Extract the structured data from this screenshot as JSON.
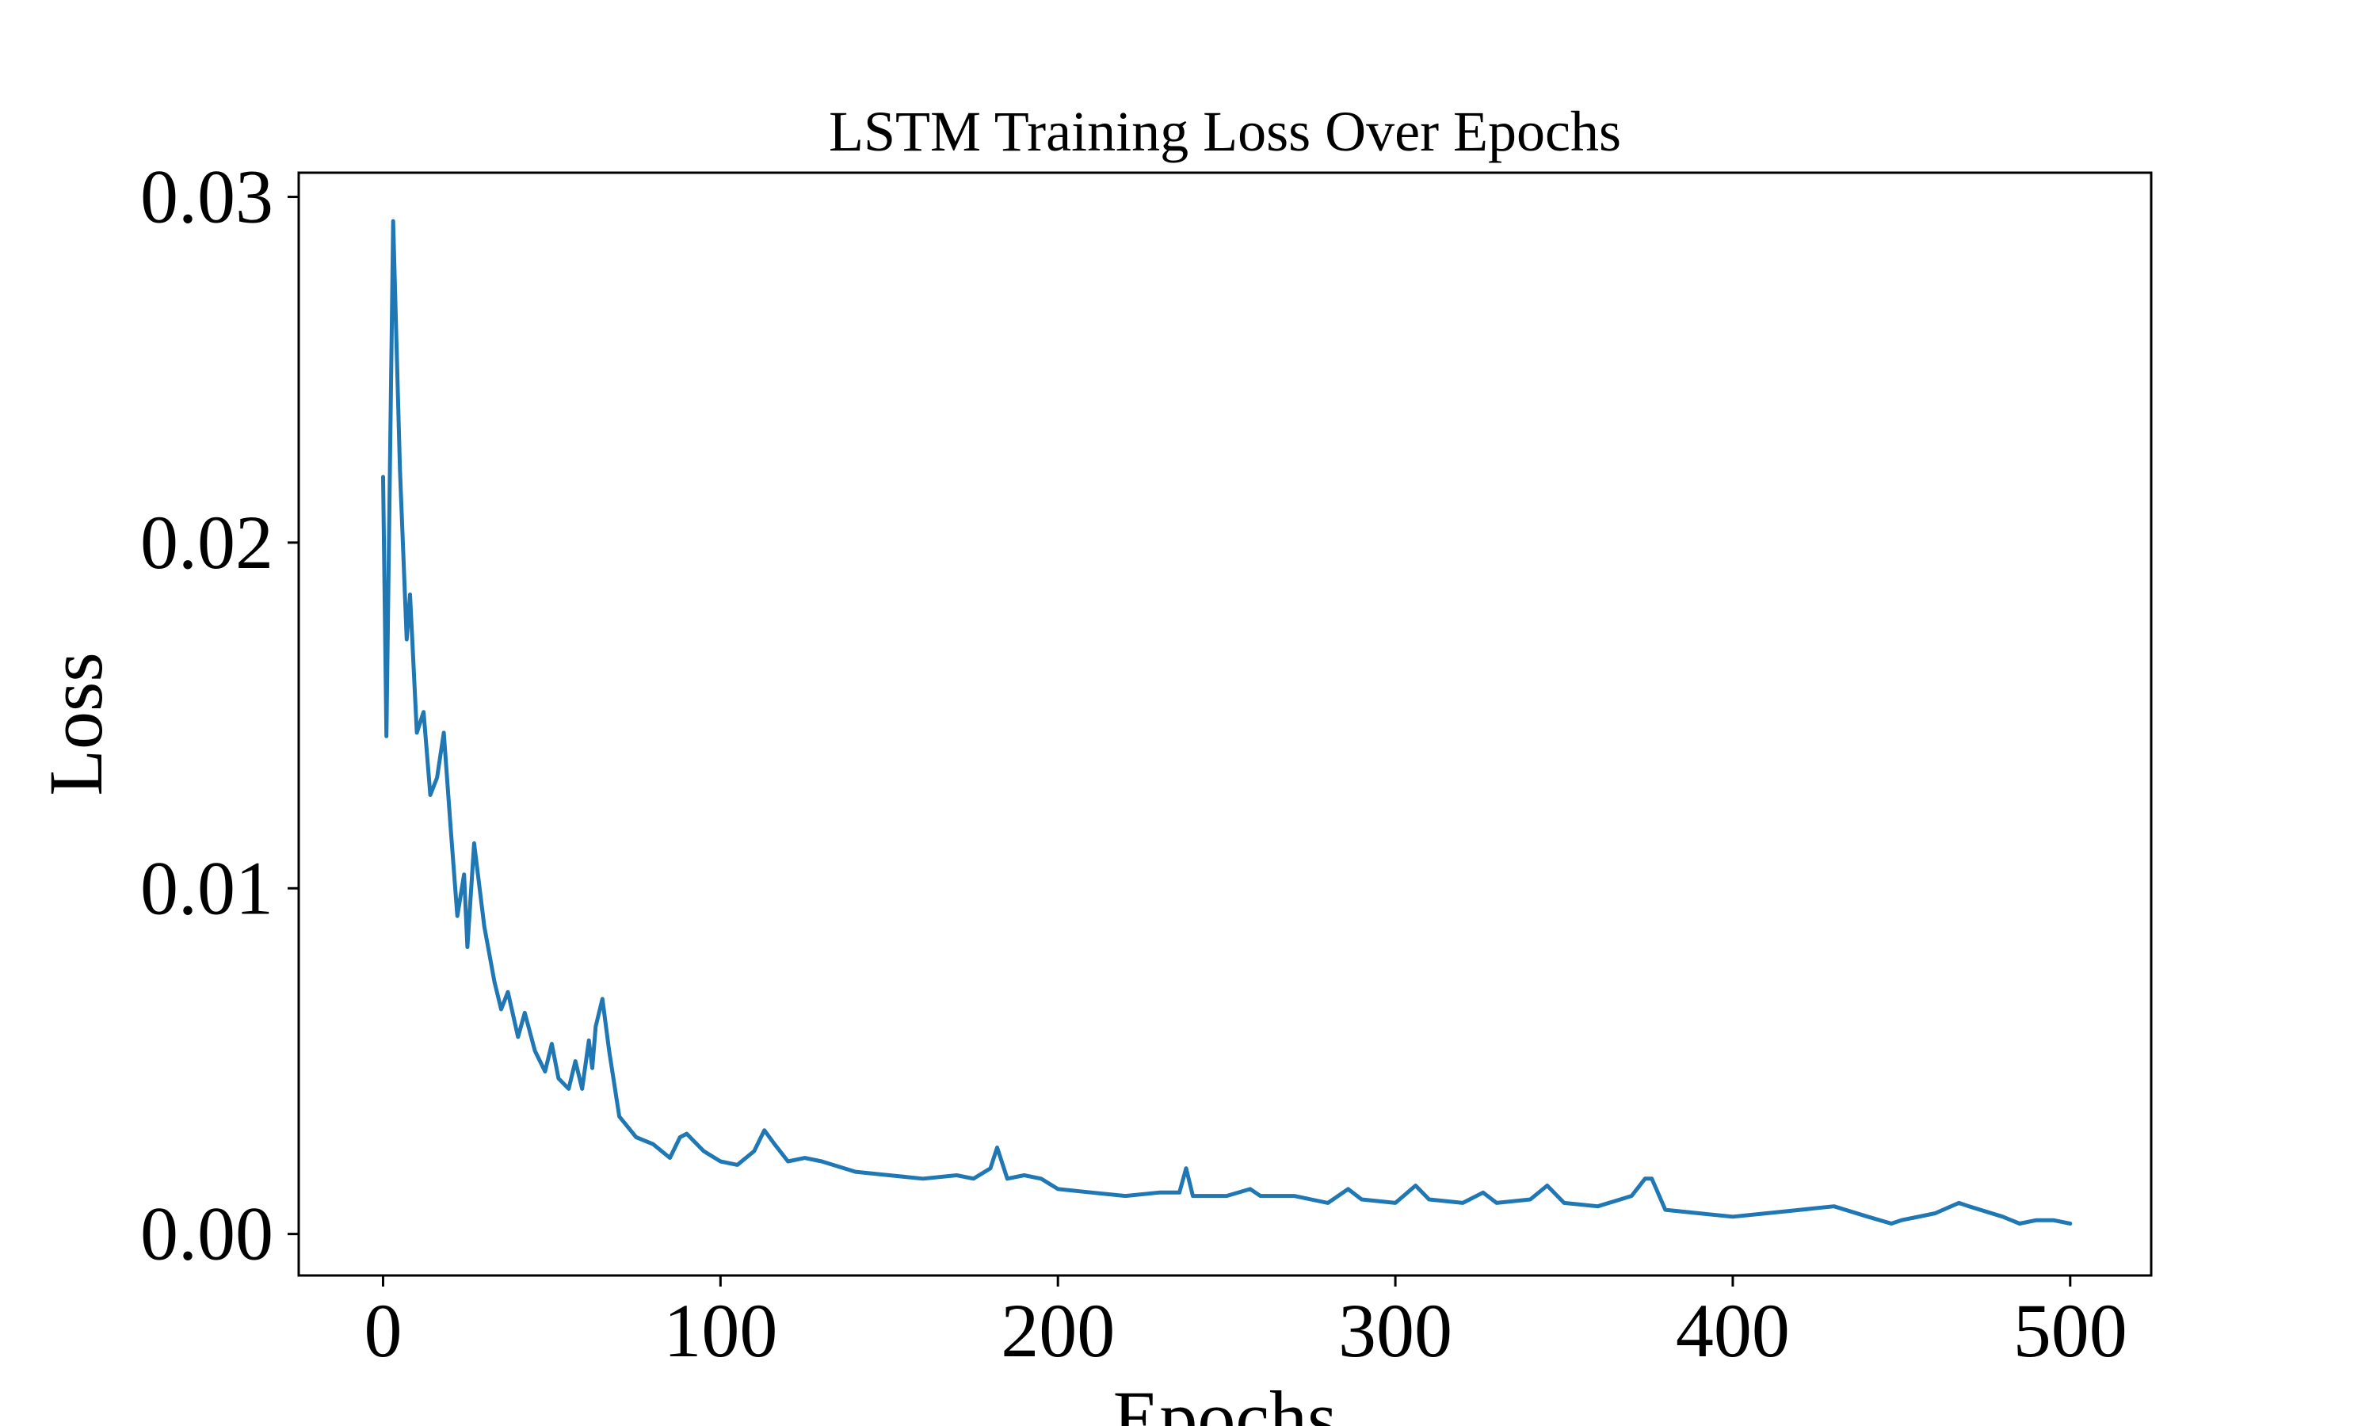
{
  "chart_data": {
    "type": "line",
    "title": "LSTM Training Loss Over Epochs",
    "xlabel": "Epochs",
    "ylabel": "Loss",
    "xlim": [
      -25,
      524
    ],
    "ylim": [
      -0.0012,
      0.0307
    ],
    "grid": false,
    "xticks": [
      0,
      100,
      200,
      300,
      400,
      500
    ],
    "xtick_labels": [
      "0",
      "100",
      "200",
      "300",
      "400",
      "500"
    ],
    "yticks": [
      0.0,
      0.01,
      0.02,
      0.03
    ],
    "ytick_labels": [
      "0.00",
      "0.01",
      "0.02",
      "0.03"
    ],
    "color": "#1f77b4",
    "series": [
      {
        "x": [
          0,
          1,
          3,
          5,
          7,
          8,
          10,
          12,
          14,
          16,
          18,
          20,
          22,
          24,
          25,
          27,
          30,
          33,
          35,
          37,
          40,
          42,
          45,
          48,
          50,
          52,
          55,
          57,
          59,
          61,
          62,
          63,
          65,
          67,
          70,
          75,
          80,
          85,
          88,
          90,
          95,
          100,
          105,
          110,
          113,
          116,
          120,
          125,
          130,
          140,
          150,
          160,
          170,
          175,
          180,
          182,
          185,
          190,
          195,
          200,
          210,
          220,
          230,
          236,
          238,
          240,
          250,
          257,
          260,
          270,
          280,
          286,
          290,
          300,
          306,
          310,
          320,
          326,
          330,
          340,
          345,
          350,
          360,
          370,
          374,
          376,
          380,
          390,
          400,
          410,
          420,
          430,
          440,
          447,
          450,
          460,
          467,
          470,
          480,
          485,
          490,
          495,
          500
        ],
        "y": [
          0.0219,
          0.0144,
          0.0293,
          0.0221,
          0.0172,
          0.0185,
          0.0145,
          0.0151,
          0.0127,
          0.0132,
          0.0145,
          0.0118,
          0.0092,
          0.0104,
          0.0083,
          0.0113,
          0.0089,
          0.0073,
          0.0065,
          0.007,
          0.0057,
          0.0064,
          0.0053,
          0.0047,
          0.0055,
          0.0045,
          0.0042,
          0.005,
          0.0042,
          0.0056,
          0.0048,
          0.006,
          0.0068,
          0.0053,
          0.0034,
          0.0028,
          0.0026,
          0.0022,
          0.0028,
          0.0029,
          0.0024,
          0.0021,
          0.002,
          0.0024,
          0.003,
          0.0026,
          0.0021,
          0.0022,
          0.0021,
          0.0018,
          0.0017,
          0.0016,
          0.0017,
          0.0016,
          0.0019,
          0.0025,
          0.0016,
          0.0017,
          0.0016,
          0.0013,
          0.0012,
          0.0011,
          0.0012,
          0.0012,
          0.0019,
          0.0011,
          0.0011,
          0.0013,
          0.0011,
          0.0011,
          0.0009,
          0.0013,
          0.001,
          0.0009,
          0.0014,
          0.001,
          0.0009,
          0.0012,
          0.0009,
          0.001,
          0.0014,
          0.0009,
          0.0008,
          0.0011,
          0.0016,
          0.0016,
          0.0007,
          0.0006,
          0.0005,
          0.0006,
          0.0007,
          0.0008,
          0.0005,
          0.0003,
          0.0004,
          0.0006,
          0.0009,
          0.0008,
          0.0005,
          0.0003,
          0.0004,
          0.0004,
          0.0003
        ]
      }
    ]
  }
}
